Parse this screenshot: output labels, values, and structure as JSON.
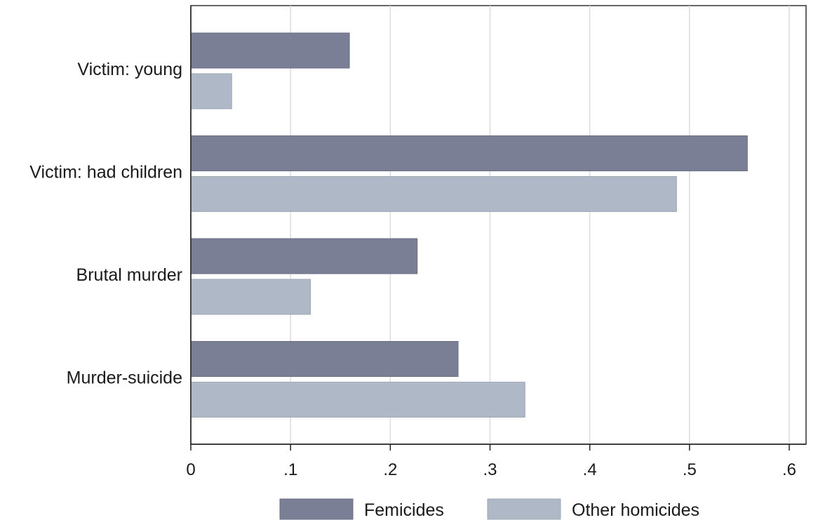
{
  "chart_data": {
    "type": "bar",
    "orientation": "horizontal",
    "categories": [
      "Victim: young",
      "Victim: had children",
      "Brutal murder",
      "Murder-suicide"
    ],
    "series": [
      {
        "name": "Femicides",
        "values": [
          0.159,
          0.558,
          0.227,
          0.268
        ],
        "color": "#7b7f95"
      },
      {
        "name": "Other homicides",
        "values": [
          0.041,
          0.487,
          0.12,
          0.335
        ],
        "color": "#aeb8c6"
      }
    ],
    "xlim": [
      0,
      0.6
    ],
    "x_ticks": [
      0,
      0.1,
      0.2,
      0.3,
      0.4,
      0.5,
      0.6
    ],
    "x_tick_labels": [
      "0",
      ".1",
      ".2",
      ".3",
      ".4",
      ".5",
      ".6"
    ],
    "title": "",
    "xlabel": "",
    "ylabel": "",
    "grid": "vertical",
    "legend_position": "bottom"
  }
}
